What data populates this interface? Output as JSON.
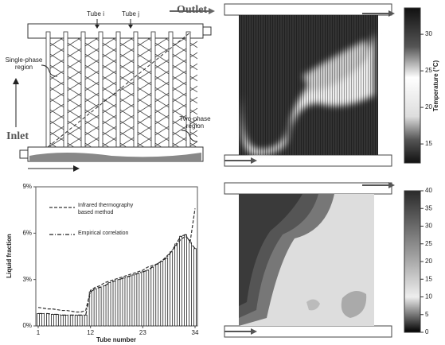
{
  "diagram": {
    "tube_i": "Tube i",
    "tube_j": "Tube j",
    "outlet": "Outlet",
    "inlet": "Inlet",
    "single_phase_region": [
      "Single-phase",
      "region"
    ],
    "two_phase_region": [
      "Two-phase",
      "region"
    ]
  },
  "thermal_image": {
    "colorbar": {
      "label": "Temperature (°C)",
      "lim": [
        12.4,
        33.6
      ],
      "ticks": [
        15,
        20,
        25,
        30
      ]
    }
  },
  "chart_data": {
    "type": "bar",
    "x_label": "Tube number",
    "y_label": "Liquid fraction",
    "x": [
      1,
      2,
      3,
      4,
      5,
      6,
      7,
      8,
      9,
      10,
      11,
      12,
      13,
      14,
      15,
      16,
      17,
      18,
      19,
      20,
      21,
      22,
      23,
      24,
      25,
      26,
      27,
      28,
      29,
      30,
      31,
      32,
      33,
      34
    ],
    "series": [
      {
        "name": "Infrared thermography based method",
        "color": "#333333",
        "values": [
          1.2,
          1.15,
          1.1,
          1.1,
          1.05,
          1.0,
          1.0,
          0.95,
          0.9,
          0.9,
          1.0,
          2.3,
          2.5,
          2.6,
          2.8,
          2.9,
          3.0,
          3.1,
          3.2,
          3.3,
          3.4,
          3.5,
          3.6,
          3.8,
          3.9,
          4.0,
          4.2,
          4.5,
          4.8,
          5.2,
          5.6,
          5.8,
          5.5,
          7.6
        ]
      },
      {
        "name": "Empirical correlation",
        "color": "#222222",
        "values": [
          0.8,
          0.8,
          0.8,
          0.75,
          0.75,
          0.7,
          0.7,
          0.7,
          0.7,
          0.7,
          0.7,
          2.2,
          2.4,
          2.5,
          2.6,
          2.8,
          2.9,
          3.0,
          3.1,
          3.2,
          3.3,
          3.4,
          3.5,
          3.6,
          3.8,
          4.0,
          4.2,
          4.4,
          4.8,
          5.3,
          5.8,
          5.9,
          5.4,
          5.0
        ]
      }
    ],
    "xlim": [
      0.5,
      34.5
    ],
    "xticks": [
      1,
      12,
      23,
      34
    ],
    "ylim": [
      0,
      9
    ],
    "yticks": [
      {
        "value": 0,
        "label": "0%"
      },
      {
        "value": 3,
        "label": "3%"
      },
      {
        "value": 6,
        "label": "6%"
      },
      {
        "value": 9,
        "label": "9%"
      }
    ]
  },
  "contour": {
    "colorbar": {
      "lim": [
        0,
        40
      ],
      "ticks": [
        0,
        5,
        10,
        15,
        20,
        25,
        30,
        35,
        40
      ]
    }
  }
}
